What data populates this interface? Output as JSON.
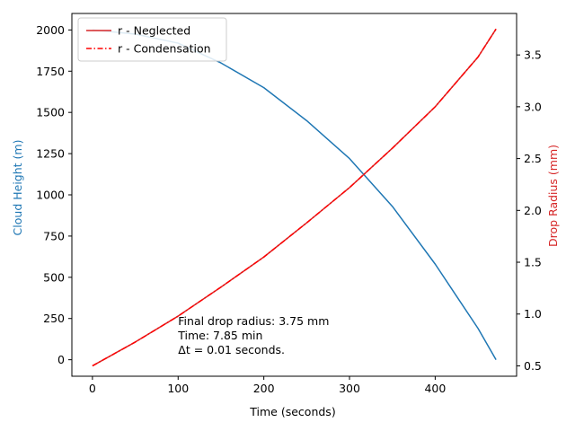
{
  "chart_data": {
    "type": "line",
    "xlabel": "Time (seconds)",
    "ylabel_left": "Cloud Height (m)",
    "ylabel_right": "Drop Radius (mm)",
    "xlim": [
      -24,
      495
    ],
    "ylim_left": [
      -100,
      2100
    ],
    "ylim_right": [
      0.4,
      3.9
    ],
    "x_ticks": [
      0,
      100,
      200,
      300,
      400
    ],
    "y_ticks_left": [
      0,
      250,
      500,
      750,
      1000,
      1250,
      1500,
      1750,
      2000
    ],
    "y_ticks_right": [
      0.5,
      1.0,
      1.5,
      2.0,
      2.5,
      3.0,
      3.5
    ],
    "grid": false,
    "legend_position": "top-left",
    "colors": {
      "height": "#1f77b4",
      "radius_neglected": "#d62728",
      "radius_condensation": "#ff0000",
      "left_axis_label": "#1f77b4",
      "right_axis_label": "#d62728"
    },
    "series": [
      {
        "name": "",
        "axis": "left",
        "color": "#1f77b4",
        "style": "solid",
        "x": [
          0,
          50,
          100,
          150,
          200,
          250,
          300,
          350,
          400,
          450,
          471
        ],
        "y": [
          2000,
          1975,
          1920,
          1800,
          1650,
          1450,
          1220,
          930,
          580,
          190,
          0
        ]
      },
      {
        "name": "r - Neglected",
        "axis": "right",
        "color": "#d62728",
        "style": "solid",
        "x": [
          0,
          50,
          100,
          150,
          200,
          250,
          300,
          350,
          400,
          450,
          471
        ],
        "y": [
          0.5,
          0.73,
          0.98,
          1.26,
          1.55,
          1.88,
          2.22,
          2.6,
          3.0,
          3.48,
          3.75
        ]
      },
      {
        "name": "r - Condensation",
        "axis": "right",
        "color": "#ff0000",
        "style": "dashdot",
        "x": [
          0,
          50,
          100,
          150,
          200,
          250,
          300,
          350,
          400,
          450,
          471
        ],
        "y": [
          0.5,
          0.73,
          0.98,
          1.26,
          1.55,
          1.88,
          2.22,
          2.6,
          3.0,
          3.48,
          3.75
        ]
      }
    ],
    "annotation": {
      "lines": [
        "Final drop radius: 3.75 mm",
        "Time: 7.85 min",
        "Δt = 0.01 seconds."
      ],
      "x": 100,
      "y": 210
    }
  }
}
